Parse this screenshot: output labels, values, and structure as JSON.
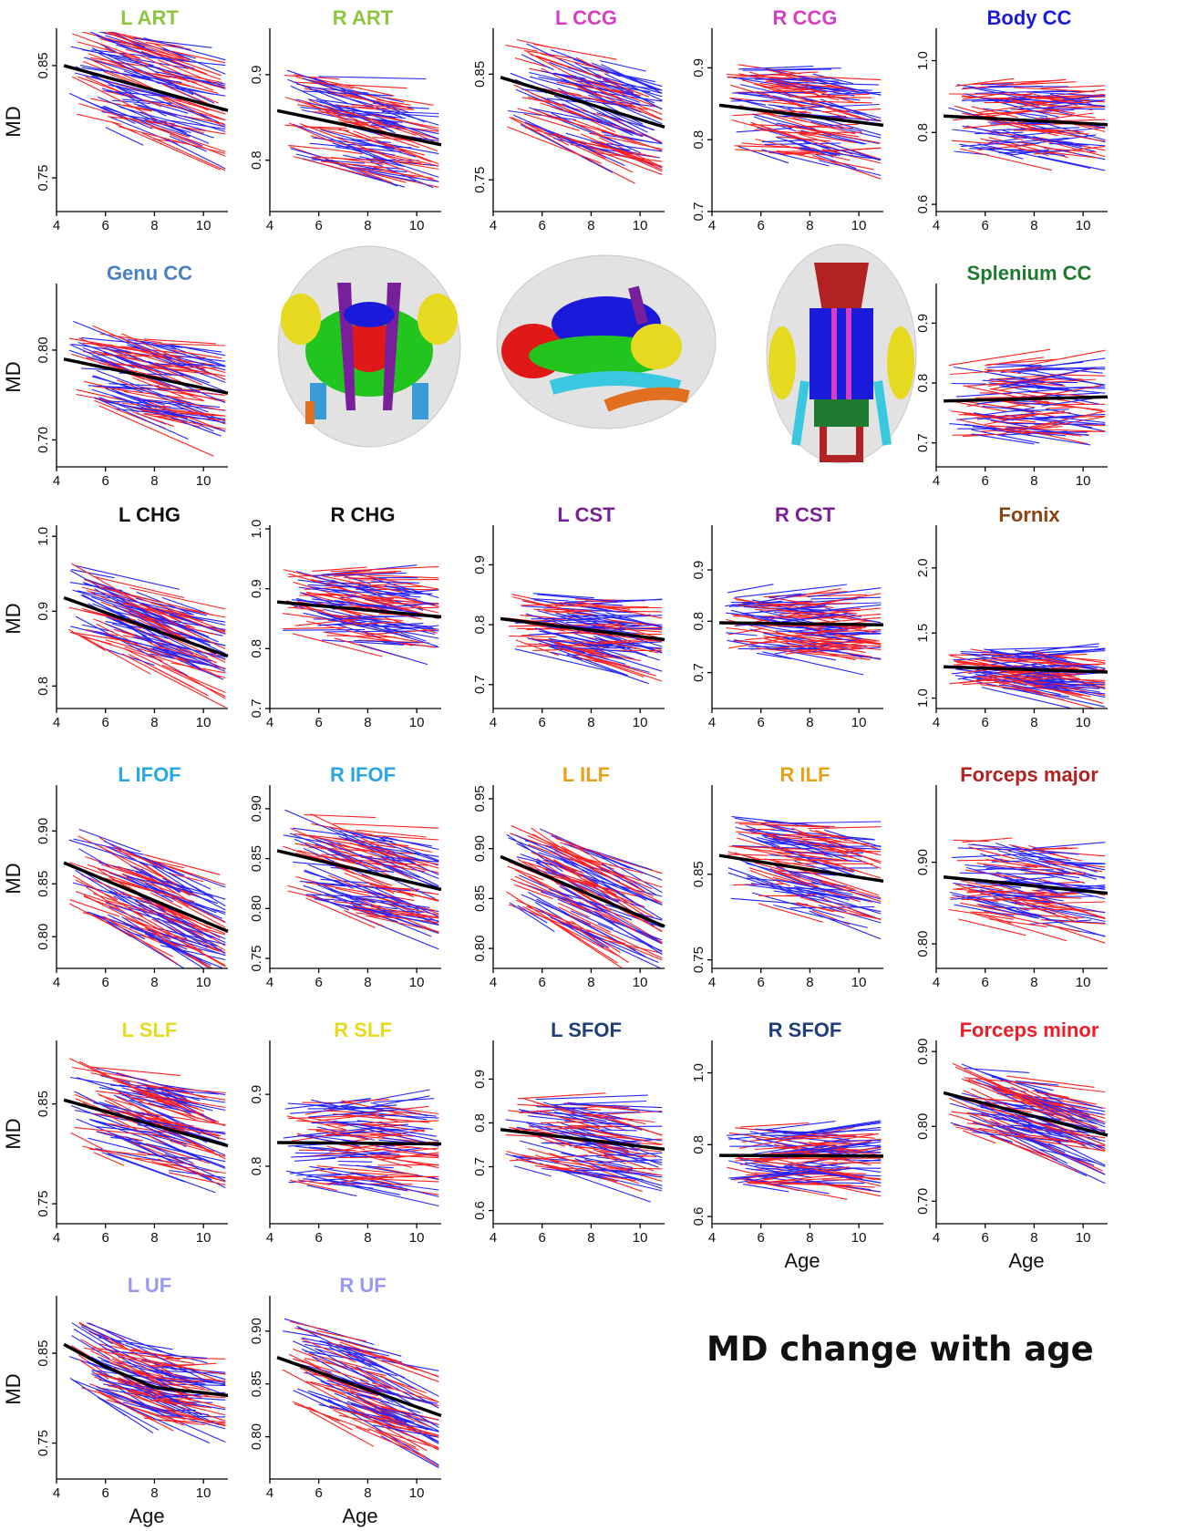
{
  "figure": {
    "title": "MD change with age",
    "colors": {
      "series_a": "#ff2020",
      "series_b": "#2424ff",
      "fit": "#000000"
    }
  },
  "brain_views": [
    "brain-coronal-view",
    "brain-sagittal-view",
    "brain-axial-view"
  ],
  "chart_data": [
    {
      "type": "line",
      "title": "L ART",
      "title_color": "#8dc63f",
      "ylabel": "MD",
      "xlabel": "",
      "xlim": [
        4,
        11
      ],
      "ylim": [
        0.72,
        0.88
      ],
      "xticks": [
        4,
        6,
        8,
        10
      ],
      "yticks": [
        0.75,
        0.85
      ],
      "ytick_labels": [
        "0.75",
        "0.85"
      ],
      "fit": {
        "x": [
          4.3,
          11
        ],
        "y": [
          0.85,
          0.81
        ]
      },
      "noise": 0.045,
      "seed": 1
    },
    {
      "type": "line",
      "title": "R ART",
      "title_color": "#8dc63f",
      "ylabel": "",
      "xlabel": "",
      "xlim": [
        4,
        11
      ],
      "ylim": [
        0.74,
        0.95
      ],
      "xticks": [
        4,
        6,
        8,
        10
      ],
      "yticks": [
        0.8,
        0.9
      ],
      "ytick_labels": [
        "0.8",
        "0.9"
      ],
      "fit": {
        "x": [
          4.3,
          11
        ],
        "y": [
          0.858,
          0.818
        ]
      },
      "noise": 0.05,
      "seed": 2
    },
    {
      "type": "line",
      "title": "L CCG",
      "title_color": "#d63fc4",
      "ylabel": "",
      "xlabel": "",
      "xlim": [
        4,
        11
      ],
      "ylim": [
        0.72,
        0.89
      ],
      "xticks": [
        4,
        6,
        8,
        10
      ],
      "yticks": [
        0.75,
        0.85
      ],
      "ytick_labels": [
        "0.75",
        "0.85"
      ],
      "fit": {
        "x": [
          4.3,
          11
        ],
        "y": [
          0.847,
          0.8
        ]
      },
      "noise": 0.045,
      "seed": 3
    },
    {
      "type": "line",
      "title": "R CCG",
      "title_color": "#d63fc4",
      "ylabel": "",
      "xlabel": "",
      "xlim": [
        4,
        11
      ],
      "ylim": [
        0.7,
        0.95
      ],
      "xticks": [
        4,
        6,
        8,
        10
      ],
      "yticks": [
        0.7,
        0.8,
        0.9
      ],
      "ytick_labels": [
        "0.7",
        "0.8",
        "0.9"
      ],
      "fit": {
        "x": [
          4.3,
          11
        ],
        "y": [
          0.848,
          0.82
        ]
      },
      "noise": 0.06,
      "seed": 4
    },
    {
      "type": "line",
      "title": "Body CC",
      "title_color": "#1a1adb",
      "ylabel": "",
      "xlabel": "",
      "xlim": [
        4,
        11
      ],
      "ylim": [
        0.58,
        1.08
      ],
      "xticks": [
        4,
        6,
        8,
        10
      ],
      "yticks": [
        0.6,
        0.8,
        1.0
      ],
      "ytick_labels": [
        "0.6",
        "0.8",
        "1.0"
      ],
      "fit": {
        "x": [
          4.3,
          11
        ],
        "y": [
          0.846,
          0.822
        ]
      },
      "noise": 0.1,
      "seed": 5
    },
    {
      "type": "line",
      "title": "Genu CC",
      "title_color": "#4a7fc1",
      "ylabel": "MD",
      "xlabel": "",
      "xlim": [
        4,
        11
      ],
      "ylim": [
        0.67,
        0.87
      ],
      "xticks": [
        4,
        6,
        8,
        10
      ],
      "yticks": [
        0.7,
        0.8
      ],
      "ytick_labels": [
        "0.70",
        "0.80"
      ],
      "fit": {
        "x": [
          4.3,
          11
        ],
        "y": [
          0.79,
          0.752
        ]
      },
      "noise": 0.045,
      "seed": 6
    },
    {
      "type": "line",
      "title": "Splenium CC",
      "title_color": "#1e7a2e",
      "ylabel": "",
      "xlabel": "",
      "xlim": [
        4,
        11
      ],
      "ylim": [
        0.66,
        0.96
      ],
      "xticks": [
        4,
        6,
        8,
        10
      ],
      "yticks": [
        0.7,
        0.8,
        0.9
      ],
      "ytick_labels": [
        "0.7",
        "0.8",
        "0.9"
      ],
      "fit": {
        "x": [
          4.3,
          11
        ],
        "y": [
          0.77,
          0.777
        ]
      },
      "noise": 0.06,
      "seed": 7
    },
    {
      "type": "line",
      "title": "L CHG",
      "title_color": "#111111",
      "ylabel": "MD",
      "xlabel": "",
      "xlim": [
        4,
        11
      ],
      "ylim": [
        0.77,
        1.01
      ],
      "xticks": [
        4,
        6,
        8,
        10
      ],
      "yticks": [
        0.8,
        0.9,
        1.0
      ],
      "ytick_labels": [
        "0.8",
        "0.9",
        "1.0"
      ],
      "fit": {
        "x": [
          4.3,
          11
        ],
        "y": [
          0.918,
          0.84
        ]
      },
      "noise": 0.05,
      "seed": 8
    },
    {
      "type": "line",
      "title": "R CHG",
      "title_color": "#111111",
      "ylabel": "",
      "xlabel": "",
      "xlim": [
        4,
        11
      ],
      "ylim": [
        0.7,
        1.0
      ],
      "xticks": [
        4,
        6,
        8,
        10
      ],
      "yticks": [
        0.7,
        0.8,
        0.9,
        1.0
      ],
      "ytick_labels": [
        "0.7",
        "0.8",
        "0.9",
        "1.0"
      ],
      "fit": {
        "x": [
          4.3,
          11
        ],
        "y": [
          0.878,
          0.853
        ]
      },
      "noise": 0.06,
      "seed": 9
    },
    {
      "type": "line",
      "title": "L CST",
      "title_color": "#7a1f9c",
      "ylabel": "",
      "xlabel": "",
      "xlim": [
        4,
        11
      ],
      "ylim": [
        0.66,
        0.96
      ],
      "xticks": [
        4,
        6,
        8,
        10
      ],
      "yticks": [
        0.7,
        0.8,
        0.9
      ],
      "ytick_labels": [
        "0.7",
        "0.8",
        "0.9"
      ],
      "fit": {
        "x": [
          4.3,
          11
        ],
        "y": [
          0.81,
          0.775
        ]
      },
      "noise": 0.05,
      "seed": 10
    },
    {
      "type": "line",
      "title": "R CST",
      "title_color": "#7a1f9c",
      "ylabel": "",
      "xlabel": "",
      "xlim": [
        4,
        11
      ],
      "ylim": [
        0.63,
        0.98
      ],
      "xticks": [
        4,
        6,
        8,
        10
      ],
      "yticks": [
        0.7,
        0.8,
        0.9
      ],
      "ytick_labels": [
        "0.7",
        "0.8",
        "0.9"
      ],
      "fit": {
        "x": [
          4.3,
          11
        ],
        "y": [
          0.797,
          0.793
        ]
      },
      "noise": 0.06,
      "seed": 11
    },
    {
      "type": "line",
      "title": "Fornix",
      "title_color": "#8b4513",
      "ylabel": "",
      "xlabel": "",
      "xlim": [
        4,
        11
      ],
      "ylim": [
        0.92,
        2.3
      ],
      "xticks": [
        4,
        6,
        8,
        10
      ],
      "yticks": [
        1.0,
        1.5,
        2.0
      ],
      "ytick_labels": [
        "1.0",
        "1.5",
        "2.0"
      ],
      "fit": {
        "x": [
          4.3,
          11
        ],
        "y": [
          1.24,
          1.2
        ]
      },
      "noise": 0.15,
      "seed": 12
    },
    {
      "type": "line",
      "title": "L IFOF",
      "title_color": "#29a8e0",
      "ylabel": "MD",
      "xlabel": "",
      "xlim": [
        4,
        11
      ],
      "ylim": [
        0.77,
        0.94
      ],
      "xticks": [
        4,
        6,
        8,
        10
      ],
      "yticks": [
        0.8,
        0.85,
        0.9
      ],
      "ytick_labels": [
        "0.80",
        "0.85",
        "0.90"
      ],
      "fit": {
        "x": [
          4.3,
          11
        ],
        "y": [
          0.87,
          0.805
        ]
      },
      "noise": 0.04,
      "seed": 13
    },
    {
      "type": "line",
      "title": "R IFOF",
      "title_color": "#29a8e0",
      "ylabel": "",
      "xlabel": "",
      "xlim": [
        4,
        11
      ],
      "ylim": [
        0.74,
        0.92
      ],
      "xticks": [
        4,
        6,
        8,
        10
      ],
      "yticks": [
        0.75,
        0.8,
        0.85,
        0.9
      ],
      "ytick_labels": [
        "0.75",
        "0.80",
        "0.85",
        "0.90"
      ],
      "fit": {
        "x": [
          4.3,
          11
        ],
        "y": [
          0.858,
          0.819
        ]
      },
      "noise": 0.045,
      "seed": 14
    },
    {
      "type": "line",
      "title": "L ILF",
      "title_color": "#e8a21a",
      "ylabel": "",
      "xlabel": "",
      "xlim": [
        4,
        11
      ],
      "ylim": [
        0.78,
        0.96
      ],
      "xticks": [
        4,
        6,
        8,
        10
      ],
      "yticks": [
        0.8,
        0.85,
        0.9,
        0.95
      ],
      "ytick_labels": [
        "0.80",
        "0.85",
        "0.90",
        "0.95"
      ],
      "fit": {
        "x": [
          4.3,
          11
        ],
        "y": [
          0.892,
          0.822
        ]
      },
      "noise": 0.045,
      "seed": 15
    },
    {
      "type": "line",
      "title": "R ILF",
      "title_color": "#e8a21a",
      "ylabel": "",
      "xlabel": "",
      "xlim": [
        4,
        11
      ],
      "ylim": [
        0.74,
        0.95
      ],
      "xticks": [
        4,
        6,
        8,
        10
      ],
      "yticks": [
        0.75,
        0.85
      ],
      "ytick_labels": [
        "0.75",
        "0.85"
      ],
      "fit": {
        "x": [
          4.3,
          11
        ],
        "y": [
          0.872,
          0.842
        ]
      },
      "noise": 0.05,
      "seed": 16
    },
    {
      "type": "line",
      "title": "Forceps major",
      "title_color": "#b22222",
      "ylabel": "",
      "xlabel": "",
      "xlim": [
        4,
        11
      ],
      "ylim": [
        0.77,
        0.99
      ],
      "xticks": [
        4,
        6,
        8,
        10
      ],
      "yticks": [
        0.8,
        0.9
      ],
      "ytick_labels": [
        "0.80",
        "0.90"
      ],
      "fit": {
        "x": [
          4.3,
          11
        ],
        "y": [
          0.882,
          0.862
        ]
      },
      "noise": 0.05,
      "seed": 17
    },
    {
      "type": "line",
      "title": "L SLF",
      "title_color": "#e6d91f",
      "ylabel": "MD",
      "xlabel": "",
      "xlim": [
        4,
        11
      ],
      "ylim": [
        0.73,
        0.91
      ],
      "xticks": [
        4,
        6,
        8,
        10
      ],
      "yticks": [
        0.75,
        0.85
      ],
      "ytick_labels": [
        "0.75",
        "0.85"
      ],
      "fit": {
        "x": [
          4.3,
          11
        ],
        "y": [
          0.854,
          0.808
        ]
      },
      "noise": 0.045,
      "seed": 18
    },
    {
      "type": "line",
      "title": "R SLF",
      "title_color": "#e6d91f",
      "ylabel": "",
      "xlabel": "",
      "xlim": [
        4,
        11
      ],
      "ylim": [
        0.72,
        0.97
      ],
      "xticks": [
        4,
        6,
        8,
        10
      ],
      "yticks": [
        0.8,
        0.9
      ],
      "ytick_labels": [
        "0.8",
        "0.9"
      ],
      "fit": {
        "x": [
          4.3,
          11
        ],
        "y": [
          0.833,
          0.831
        ]
      },
      "noise": 0.06,
      "seed": 19
    },
    {
      "type": "line",
      "title": "L SFOF",
      "title_color": "#1f3f7a",
      "ylabel": "",
      "xlabel": "",
      "xlim": [
        4,
        11
      ],
      "ylim": [
        0.57,
        0.98
      ],
      "xticks": [
        4,
        6,
        8,
        10
      ],
      "yticks": [
        0.6,
        0.7,
        0.8,
        0.9
      ],
      "ytick_labels": [
        "0.6",
        "0.7",
        "0.8",
        "0.9"
      ],
      "fit": {
        "x": [
          4.3,
          11
        ],
        "y": [
          0.785,
          0.74
        ]
      },
      "noise": 0.08,
      "seed": 20
    },
    {
      "type": "line",
      "title": "R SFOF",
      "title_color": "#1f3f7a",
      "ylabel": "",
      "xlabel": "Age",
      "xlim": [
        4,
        11
      ],
      "ylim": [
        0.58,
        1.08
      ],
      "xticks": [
        4,
        6,
        8,
        10
      ],
      "yticks": [
        0.6,
        0.8,
        1.0
      ],
      "ytick_labels": [
        "0.6",
        "0.8",
        "1.0"
      ],
      "fit": {
        "x": [
          4.3,
          11
        ],
        "y": [
          0.77,
          0.768
        ]
      },
      "noise": 0.08,
      "seed": 21
    },
    {
      "type": "line",
      "title": "Forceps minor",
      "title_color": "#ee1c25",
      "ylabel": "",
      "xlabel": "Age",
      "xlim": [
        4,
        11
      ],
      "ylim": [
        0.67,
        0.91
      ],
      "xticks": [
        4,
        6,
        8,
        10
      ],
      "yticks": [
        0.7,
        0.8,
        0.9
      ],
      "ytick_labels": [
        "0.70",
        "0.80",
        "0.90"
      ],
      "fit": {
        "x": [
          4.3,
          11
        ],
        "y": [
          0.845,
          0.788
        ]
      },
      "noise": 0.045,
      "seed": 22
    },
    {
      "type": "line",
      "title": "L UF",
      "title_color": "#9999f0",
      "ylabel": "MD",
      "xlabel": "Age",
      "xlim": [
        4,
        11
      ],
      "ylim": [
        0.71,
        0.91
      ],
      "xticks": [
        4,
        6,
        8,
        10
      ],
      "yticks": [
        0.75,
        0.85
      ],
      "ytick_labels": [
        "0.75",
        "0.85"
      ],
      "fit": {
        "x": [
          4.3,
          6,
          8,
          11
        ],
        "y": [
          0.86,
          0.835,
          0.812,
          0.803
        ]
      },
      "noise": 0.04,
      "seed": 23
    },
    {
      "type": "line",
      "title": "R UF",
      "title_color": "#9999f0",
      "ylabel": "",
      "xlabel": "Age",
      "xlim": [
        4,
        11
      ],
      "ylim": [
        0.76,
        0.93
      ],
      "xticks": [
        4,
        6,
        8,
        10
      ],
      "yticks": [
        0.8,
        0.85,
        0.9
      ],
      "ytick_labels": [
        "0.80",
        "0.85",
        "0.90"
      ],
      "fit": {
        "x": [
          4.3,
          11
        ],
        "y": [
          0.875,
          0.82
        ]
      },
      "noise": 0.04,
      "seed": 24
    }
  ]
}
